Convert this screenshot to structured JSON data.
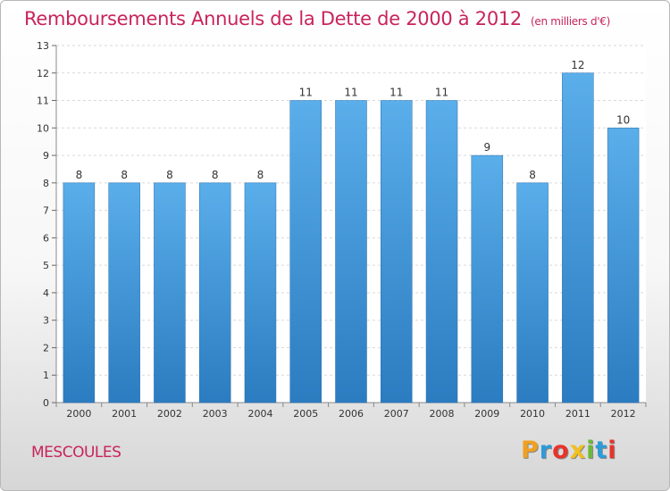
{
  "header": {
    "title": "Remboursements Annuels de la Dette de 2000 à 2012",
    "unit": "(en milliers d'€)"
  },
  "footer": {
    "commune": "MESCOULES"
  },
  "logo": {
    "letters": [
      "P",
      "r",
      "o",
      "x",
      "i",
      "t",
      "i"
    ],
    "colors": [
      "#f0a020",
      "#2e9ad8",
      "#e8332a",
      "#f0c020",
      "#6cb83c",
      "#2e9ad8",
      "#e8332a"
    ]
  },
  "chart_data": {
    "type": "bar",
    "categories": [
      "2000",
      "2001",
      "2002",
      "2003",
      "2004",
      "2005",
      "2006",
      "2007",
      "2008",
      "2009",
      "2010",
      "2011",
      "2012"
    ],
    "values": [
      8,
      8,
      8,
      8,
      8,
      11,
      11,
      11,
      11,
      9,
      8,
      12,
      10
    ],
    "data_labels": [
      "8",
      "8",
      "8",
      "8",
      "8",
      "11",
      "11",
      "11",
      "11",
      "9",
      "8",
      "12",
      "10"
    ],
    "yticks": [
      "0",
      "1",
      "2",
      "3",
      "4",
      "5",
      "6",
      "7",
      "8",
      "9",
      "10",
      "11",
      "12",
      "13"
    ],
    "ylim": [
      0,
      13
    ],
    "grid": true,
    "bar_color": "#4a9fe0"
  }
}
